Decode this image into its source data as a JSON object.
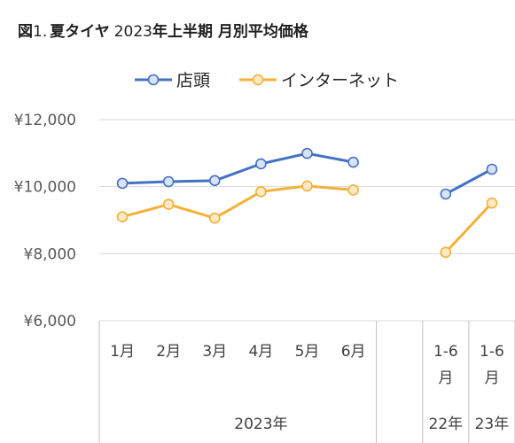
{
  "chart_data": {
    "type": "line",
    "title": {
      "prefix": "図",
      "number": "1.",
      "subject": "夏タイヤ",
      "year": "2023",
      "rest": "年上半期 月別平均価格"
    },
    "ylim": [
      6000,
      12000
    ],
    "yticks": [
      "¥6,000",
      "¥8,000",
      "¥10,000",
      "¥12,000"
    ],
    "ytick_values": [
      6000,
      8000,
      10000,
      12000
    ],
    "grid": true,
    "legend_position": "top",
    "categories": [
      {
        "label": [
          "1月"
        ]
      },
      {
        "label": [
          "2月"
        ]
      },
      {
        "label": [
          "3月"
        ]
      },
      {
        "label": [
          "4月"
        ]
      },
      {
        "label": [
          "5月"
        ]
      },
      {
        "label": [
          "6月"
        ]
      },
      {
        "label": [
          ""
        ]
      },
      {
        "label": [
          "1-6",
          "月"
        ]
      },
      {
        "label": [
          "1-6",
          "月"
        ]
      }
    ],
    "groups": [
      {
        "label": "2023年",
        "span": [
          0,
          6
        ]
      },
      {
        "label": "",
        "span": [
          6,
          6
        ]
      },
      {
        "label": "22年",
        "span": [
          7,
          7
        ]
      },
      {
        "label": "23年",
        "span": [
          8,
          8
        ]
      }
    ],
    "series": [
      {
        "name": "店頭",
        "color": "#4472c4",
        "marker_fill": "#dae3f3",
        "values": [
          10100,
          10150,
          10180,
          10680,
          10990,
          10730,
          null,
          9780,
          10520
        ]
      },
      {
        "name": "インターネット",
        "color": "#f4b13a",
        "marker_fill": "#fde9c4",
        "values": [
          9100,
          9470,
          9060,
          9850,
          10020,
          9900,
          null,
          8040,
          9510
        ]
      }
    ]
  }
}
